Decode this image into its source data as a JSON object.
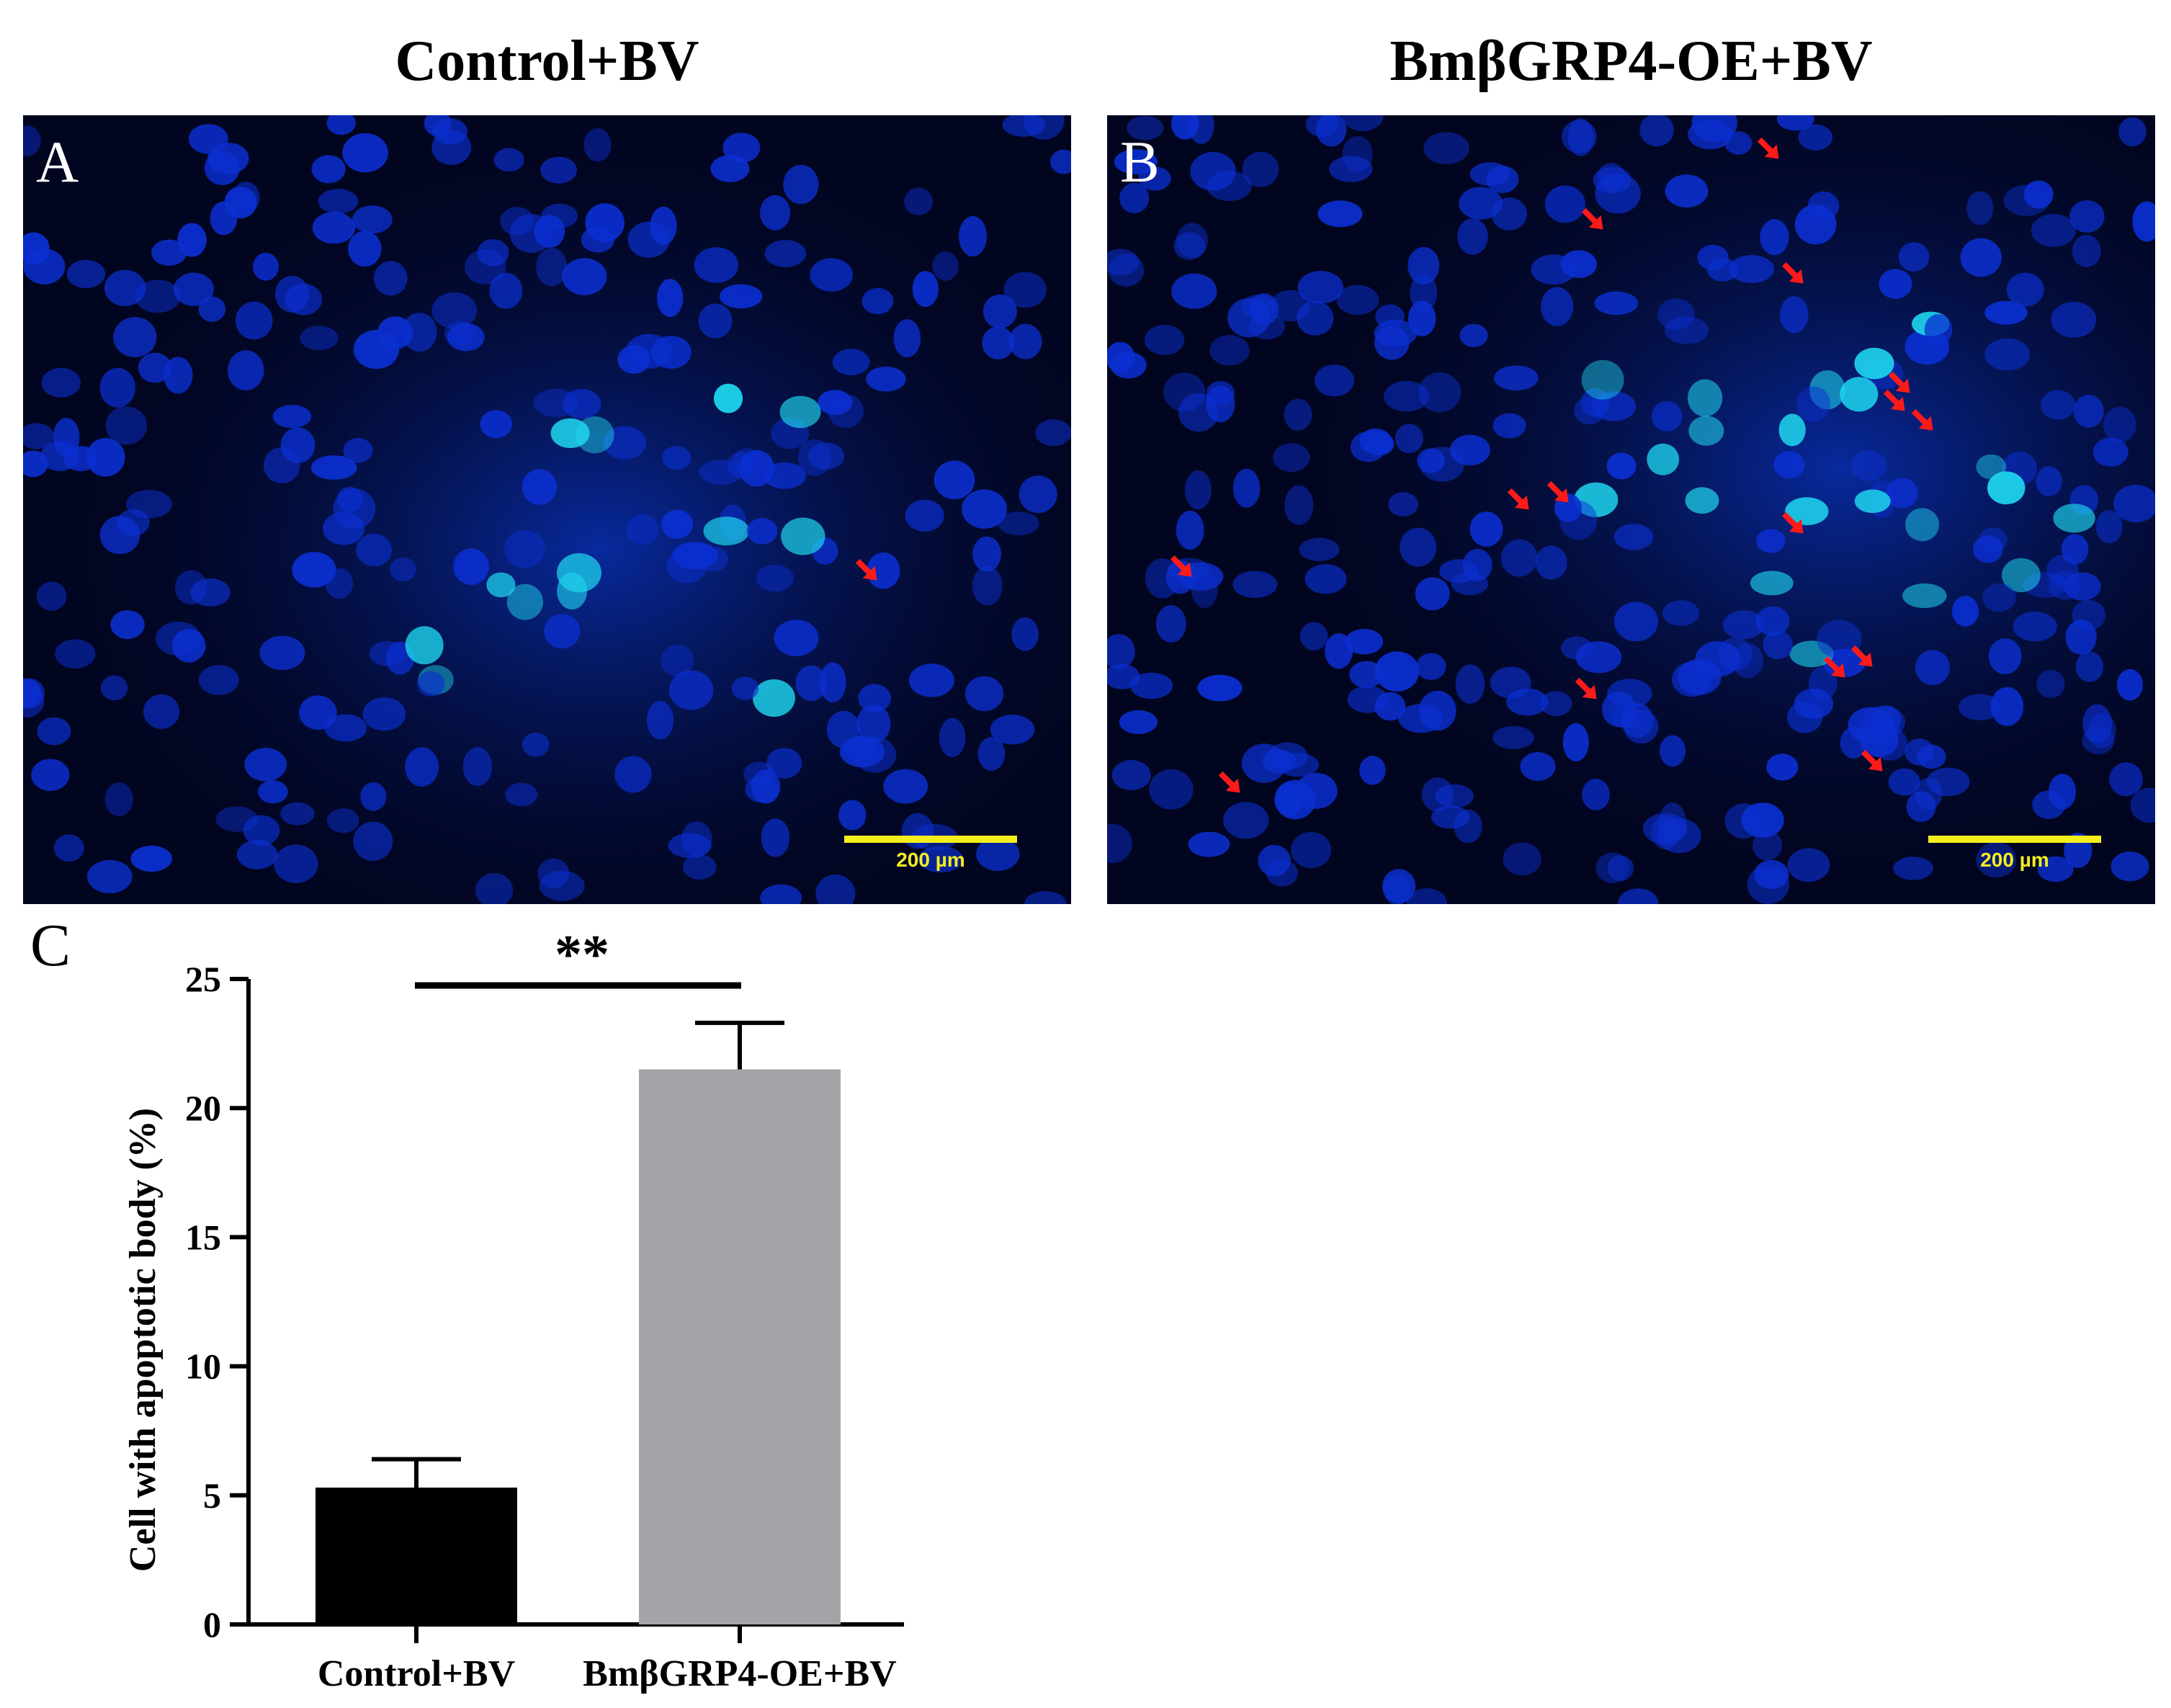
{
  "panels": [
    {
      "letter": "A",
      "title": "Control+BV",
      "scale_label": "200 µm",
      "arrow_count": 1
    },
    {
      "letter": "B",
      "title": "BmβGRP4-OE+BV",
      "scale_label": "200 µm",
      "arrow_count": 15
    }
  ],
  "colors": {
    "micro_background": "#020520",
    "nucleus_dim": "#0b2fd0",
    "nucleus_bright": "#1fd6ee",
    "arrow": "#ff1a1a",
    "scale_bar": "#f3ee1c",
    "bar_control": "#000000",
    "bar_oe": "#a4a3a8"
  },
  "chart_data": {
    "panel_letter": "C",
    "type": "bar",
    "categories": [
      "Control+BV",
      "BmβGRP4-OE+BV"
    ],
    "values": [
      5.3,
      21.5
    ],
    "error": [
      1.1,
      1.8
    ],
    "ylabel": "Cell with apoptotic body (%)",
    "xlabel": "",
    "ylim": [
      0,
      25
    ],
    "yticks": [
      0,
      5,
      10,
      15,
      20,
      25
    ],
    "significance": "**",
    "grid": false
  }
}
